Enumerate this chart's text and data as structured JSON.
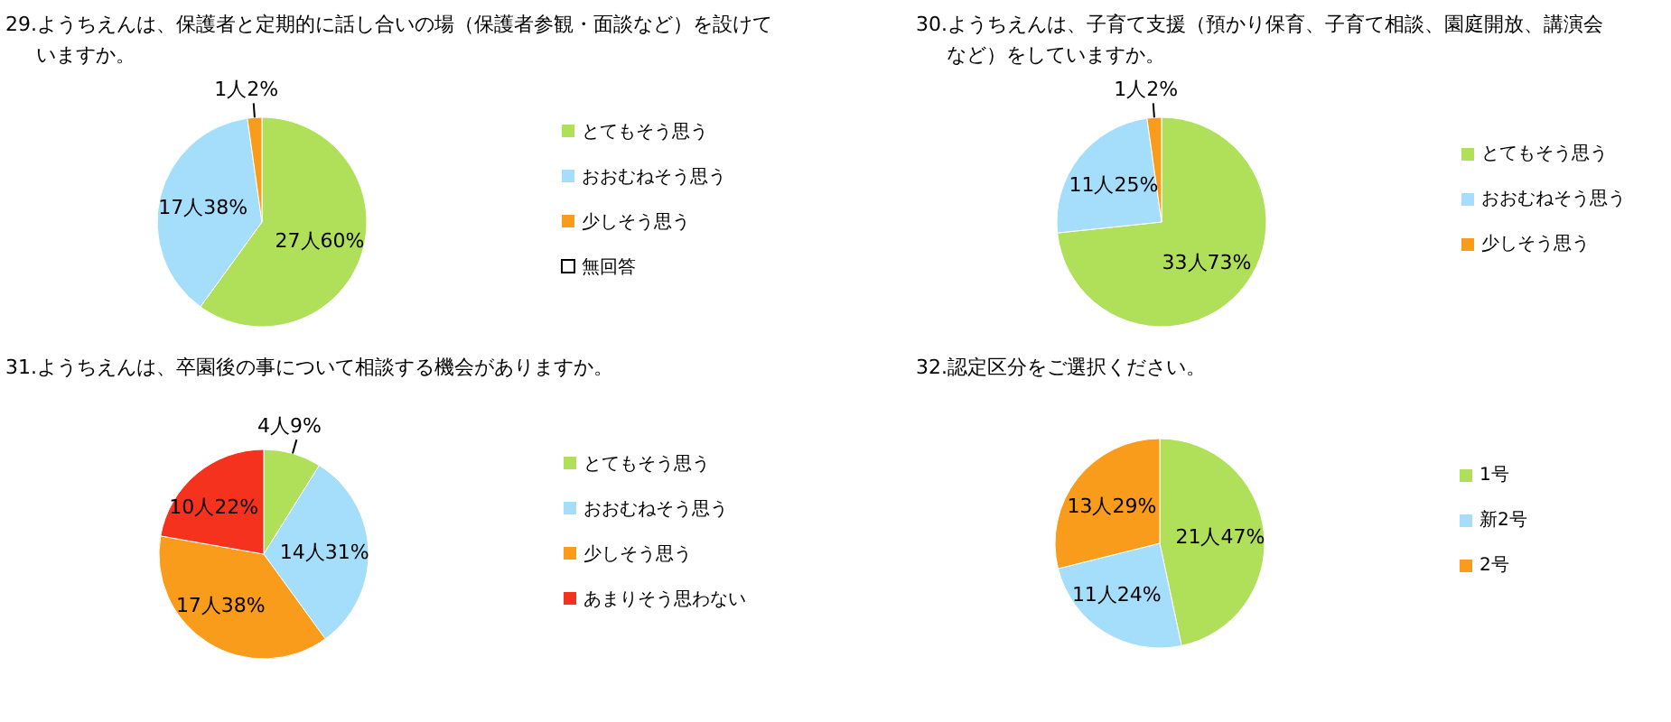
{
  "chart_data": [
    {
      "type": "pie",
      "title": "29.ようちえんは、保護者と定期的に話し合いの場（保護者参観・面談など）を設けていますか。",
      "categories": [
        "とてもそう思う",
        "おおむねそう思う",
        "少しそう思う",
        "無回答"
      ],
      "values": [
        27,
        17,
        1,
        0
      ],
      "colors": [
        "#b0e05a",
        "#a4defa",
        "#f99c1c",
        "#ffffff"
      ],
      "value_labels": [
        "27人60%",
        "17人38%",
        "1人2%",
        null
      ],
      "legend": "right"
    },
    {
      "type": "pie",
      "title": "30.ようちえんは、子育て支援（預かり保育、子育て相談、園庭開放、講演会など）をしていますか。",
      "categories": [
        "とてもそう思う",
        "おおむねそう思う",
        "少しそう思う"
      ],
      "values": [
        33,
        11,
        1
      ],
      "colors": [
        "#b0e05a",
        "#a4defa",
        "#f99c1c"
      ],
      "value_labels": [
        "33人73%",
        "11人25%",
        "1人2%"
      ],
      "legend": "right"
    },
    {
      "type": "pie",
      "title": "31.ようちえんは、卒園後の事について相談する機会がありますか。",
      "categories": [
        "とてもそう思う",
        "おおむねそう思う",
        "少しそう思う",
        "あまりそう思わない"
      ],
      "values": [
        4,
        14,
        17,
        10
      ],
      "colors": [
        "#b0e05a",
        "#a4defa",
        "#f99c1c",
        "#f5321e"
      ],
      "value_labels": [
        "4人9%",
        "14人31%",
        "17人38%",
        "10人22%"
      ],
      "legend": "right"
    },
    {
      "type": "pie",
      "title": "32.認定区分をご選択ください。",
      "categories": [
        "1号",
        "新2号",
        "2号"
      ],
      "values": [
        21,
        11,
        13
      ],
      "colors": [
        "#b0e05a",
        "#a4defa",
        "#f99c1c"
      ],
      "value_labels": [
        "21人47%",
        "11人24%",
        "13人29%"
      ],
      "legend": "right"
    }
  ]
}
